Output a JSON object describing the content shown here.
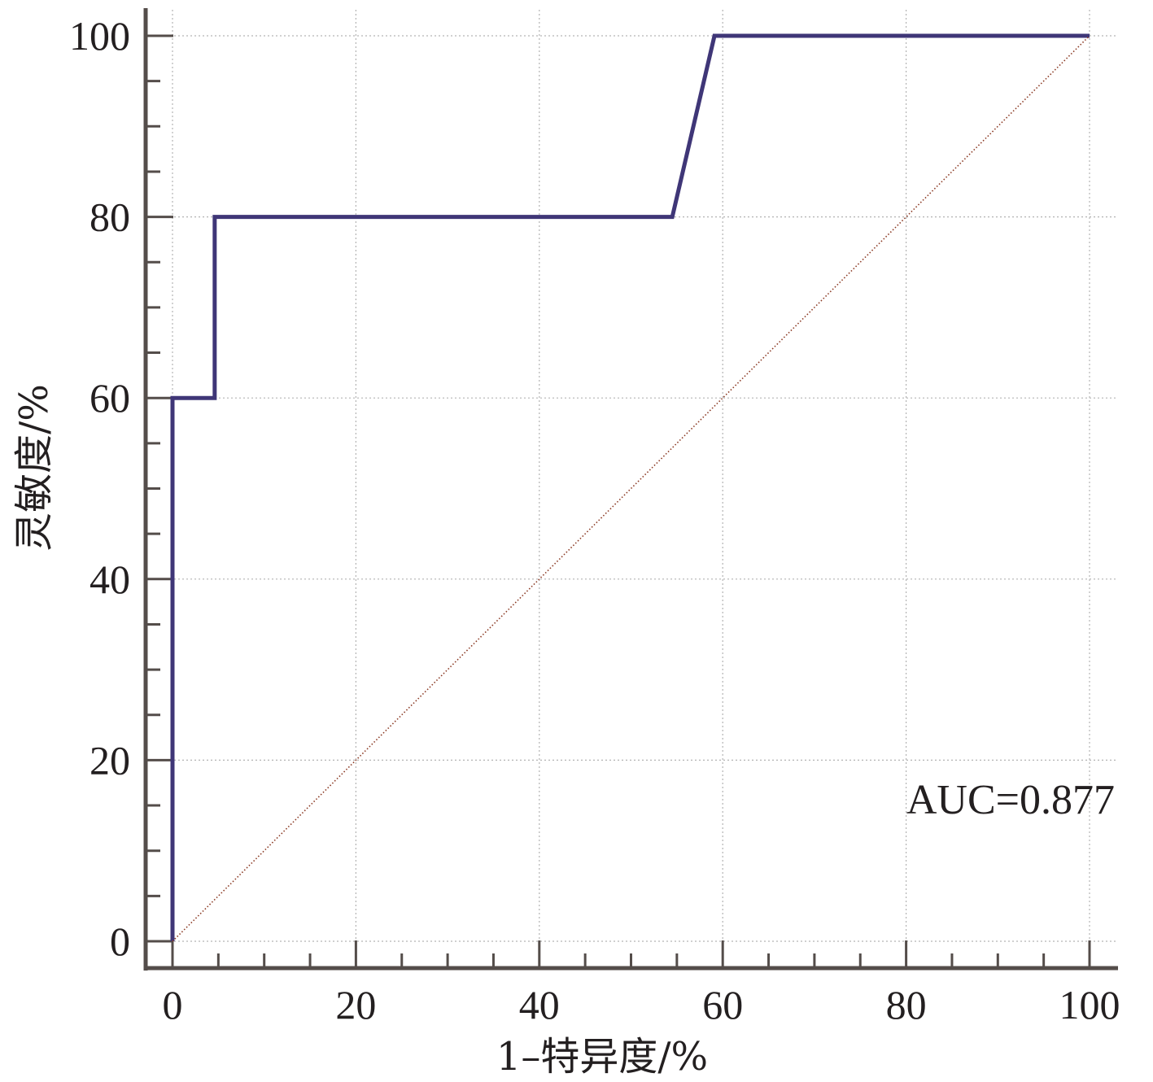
{
  "chart_data": {
    "type": "line",
    "title": "",
    "xlabel": "1–特异度/%",
    "ylabel": "灵敏度/%",
    "xlim": [
      0,
      100
    ],
    "ylim": [
      0,
      100
    ],
    "x_ticks": [
      "0",
      "20",
      "40",
      "60",
      "80",
      "100"
    ],
    "y_ticks": [
      "0",
      "20",
      "40",
      "60",
      "80",
      "100"
    ],
    "grid": true,
    "series": [
      {
        "name": "",
        "color": "#3f3677",
        "x": [
          0,
          0,
          4.6,
          4.6,
          54.5,
          59.1,
          100
        ],
        "y": [
          0,
          60,
          60,
          80,
          80,
          100,
          100
        ]
      },
      {
        "name": "",
        "color": "#8b3a24",
        "style": "dotted-reference",
        "x": [
          0,
          100
        ],
        "y": [
          0,
          100
        ]
      }
    ],
    "annotation": "AUC=0.877",
    "axis_color": "#544d4a",
    "grid_color": "#b3b3b3"
  }
}
